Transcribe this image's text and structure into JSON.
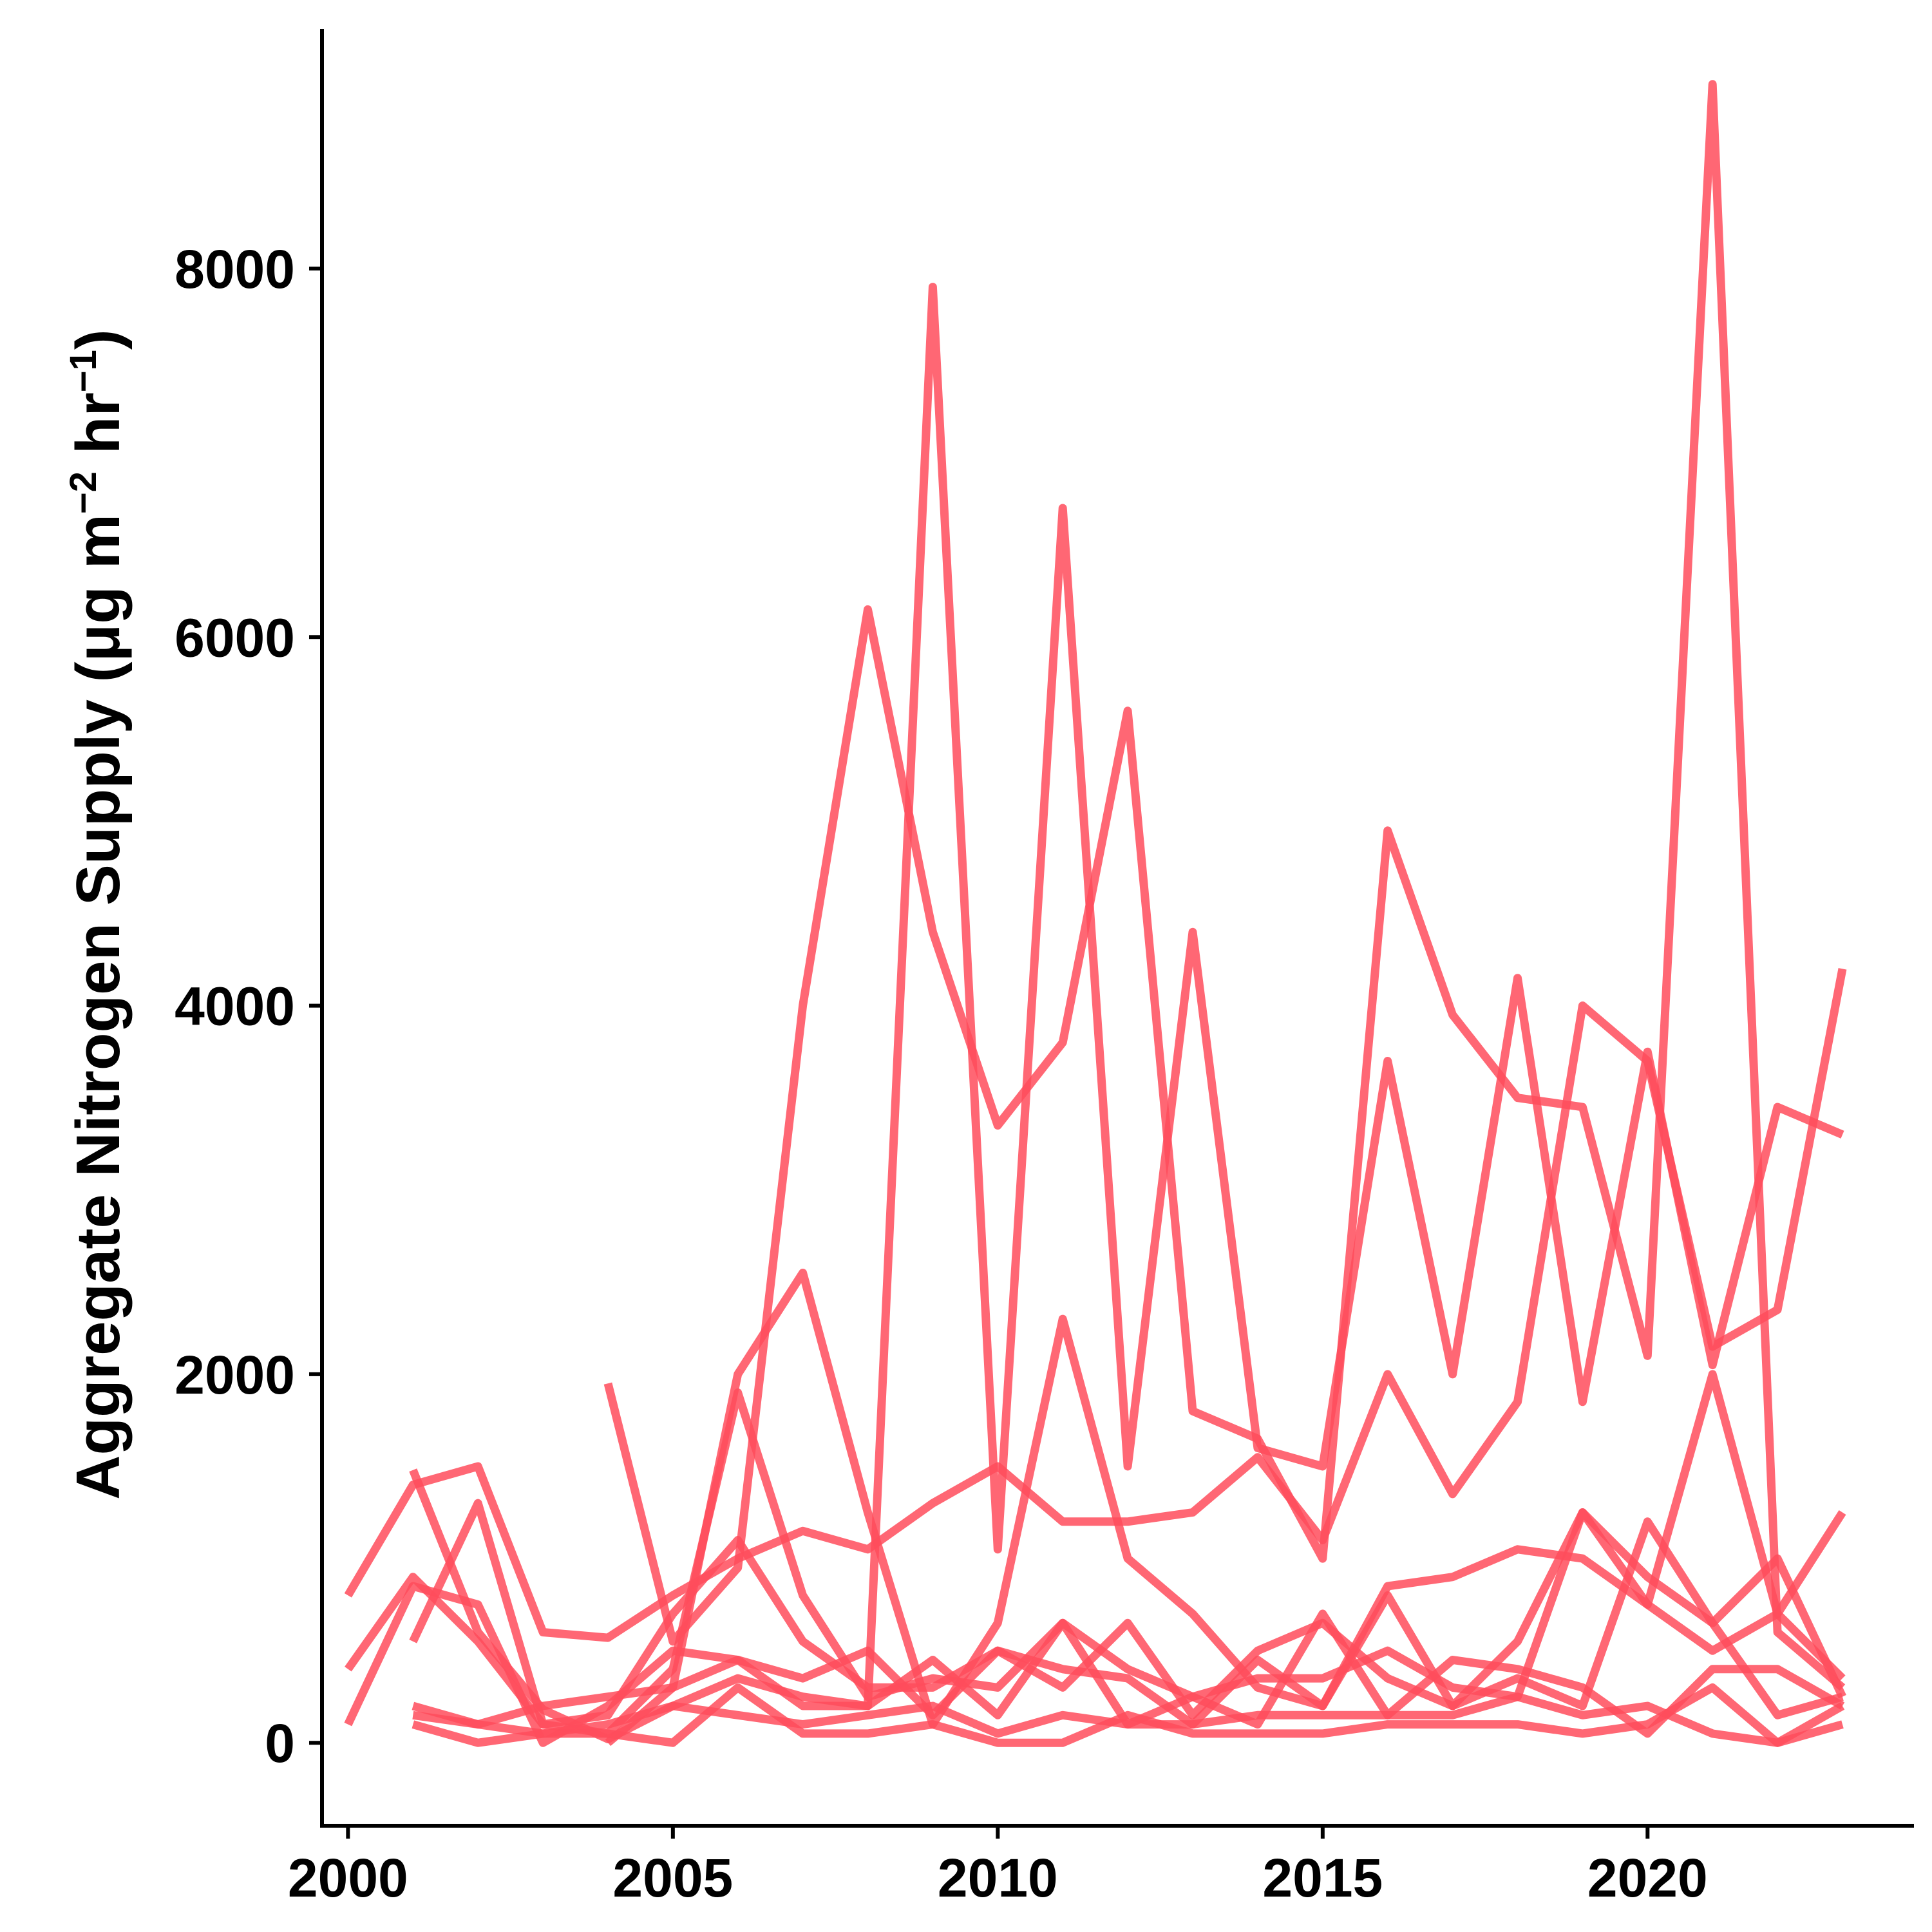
{
  "chart_data": {
    "type": "line",
    "title": "",
    "xlabel": "",
    "ylabel": "Aggregate Nitrogen Supply (μg m",
    "ylabel_sup1": "−2",
    "ylabel_mid": " hr",
    "ylabel_sup2": "−1",
    "ylabel_end": ")",
    "xlim": [
      1999.6,
      2024.1
    ],
    "ylim": [
      -450,
      9300
    ],
    "x_ticks": [
      2000,
      2005,
      2010,
      2015,
      2020
    ],
    "y_ticks": [
      0,
      2000,
      4000,
      6000,
      8000
    ],
    "grid": false,
    "legend": "none",
    "line_color": "#ff4c5c",
    "line_opacity": 0.85,
    "series": [
      {
        "x": [
          2001,
          2002,
          2003,
          2004,
          2005,
          2006,
          2007,
          2008,
          2009,
          2010,
          2011,
          2012,
          2013,
          2014,
          2015,
          2016,
          2017,
          2018,
          2019,
          2020,
          2021,
          2022,
          2023
        ],
        "values": [
          1480,
          600,
          180,
          20,
          200,
          350,
          250,
          200,
          7900,
          1050,
          6700,
          1500,
          4400,
          1600,
          1500,
          3700,
          2000,
          4150,
          1850,
          3750,
          2050,
          3450,
          3300
        ]
      },
      {
        "x": [
          2004,
          2005,
          2006,
          2007,
          2008,
          2009,
          2010,
          2011,
          2012,
          2013,
          2014,
          2015,
          2016,
          2017,
          2018,
          2019,
          2020,
          2021,
          2022,
          2023
        ],
        "values": [
          1950,
          550,
          950,
          4000,
          6150,
          4400,
          3350,
          3800,
          5600,
          1800,
          1650,
          1000,
          4950,
          3950,
          3500,
          3450,
          2100,
          9000,
          600,
          300
        ]
      },
      {
        "x": [
          2000,
          2001,
          2002,
          2003,
          2004,
          2005,
          2006,
          2007,
          2008,
          2009,
          2010,
          2011,
          2012,
          2013,
          2014,
          2015,
          2016,
          2017,
          2018,
          2019,
          2020,
          2021,
          2022,
          2023
        ],
        "values": [
          800,
          1400,
          1500,
          600,
          570,
          800,
          1000,
          1150,
          1050,
          1300,
          1500,
          1200,
          1200,
          1250,
          1550,
          1100,
          2000,
          1350,
          1850,
          4000,
          3700,
          2150,
          2350,
          4200
        ]
      },
      {
        "x": [
          2004,
          2005,
          2006,
          2007,
          2008,
          2009,
          2010,
          2011,
          2012,
          2013,
          2014,
          2015,
          2016,
          2017,
          2018,
          2019,
          2020,
          2021,
          2022,
          2023
        ],
        "values": [
          0,
          300,
          2000,
          2550,
          1250,
          100,
          650,
          2300,
          1000,
          700,
          300,
          200,
          850,
          900,
          1050,
          1000,
          750,
          2000,
          700,
          350
        ]
      },
      {
        "x": [
          2000,
          2001,
          2002,
          2003,
          2004,
          2005,
          2006,
          2007,
          2008,
          2009,
          2010,
          2011,
          2012,
          2013,
          2014,
          2015,
          2016,
          2017,
          2018,
          2019,
          2020,
          2021,
          2022,
          2023
        ],
        "values": [
          400,
          900,
          550,
          100,
          50,
          400,
          1900,
          800,
          250,
          350,
          300,
          650,
          400,
          250,
          350,
          350,
          500,
          300,
          250,
          1250,
          750,
          500,
          700,
          1250
        ]
      },
      {
        "x": [
          2001,
          2002,
          2003,
          2004,
          2005,
          2006,
          2007,
          2008,
          2009,
          2010,
          2011,
          2012,
          2013,
          2014,
          2015,
          2016,
          2017,
          2018,
          2019,
          2020,
          2021,
          2022,
          2023
        ],
        "values": [
          550,
          1300,
          100,
          150,
          700,
          1100,
          550,
          300,
          300,
          500,
          400,
          350,
          100,
          450,
          200,
          800,
          200,
          550,
          1250,
          900,
          650,
          1000,
          250
        ]
      },
      {
        "x": [
          2000,
          2001,
          2002,
          2003,
          2004,
          2005,
          2006,
          2007,
          2008,
          2009,
          2010,
          2011,
          2012,
          2013,
          2014,
          2015,
          2016,
          2017,
          2018,
          2019,
          2020,
          2021,
          2022,
          2023
        ],
        "values": [
          100,
          850,
          750,
          0,
          200,
          500,
          450,
          350,
          500,
          150,
          500,
          300,
          650,
          150,
          500,
          650,
          350,
          200,
          350,
          200,
          1200,
          650,
          150,
          250
        ]
      },
      {
        "x": [
          2001,
          2002,
          2003,
          2004,
          2005,
          2006,
          2007,
          2008,
          2009,
          2010,
          2011,
          2012,
          2013,
          2014,
          2015,
          2016,
          2017,
          2018,
          2019,
          2020,
          2021,
          2022,
          2023
        ],
        "values": [
          200,
          100,
          200,
          250,
          300,
          450,
          200,
          200,
          450,
          150,
          650,
          100,
          250,
          100,
          700,
          150,
          450,
          400,
          300,
          50,
          400,
          400,
          200
        ]
      },
      {
        "x": [
          2001,
          2002,
          2003,
          2004,
          2005,
          2006,
          2007,
          2008,
          2009,
          2010,
          2011,
          2012,
          2013,
          2014,
          2015,
          2016,
          2017,
          2018,
          2019,
          2020,
          2021,
          2022,
          2023
        ],
        "values": [
          150,
          100,
          50,
          100,
          200,
          150,
          100,
          150,
          200,
          50,
          150,
          100,
          100,
          150,
          150,
          150,
          150,
          250,
          150,
          200,
          50,
          0,
          200
        ]
      },
      {
        "x": [
          2001,
          2002,
          2003,
          2004,
          2005,
          2006,
          2007,
          2008,
          2009,
          2010,
          2011,
          2012,
          2013,
          2014,
          2015,
          2016,
          2017,
          2018,
          2019,
          2020,
          2021,
          2022,
          2023
        ],
        "values": [
          100,
          0,
          50,
          50,
          0,
          300,
          50,
          50,
          100,
          0,
          0,
          150,
          50,
          50,
          50,
          100,
          100,
          100,
          50,
          100,
          300,
          0,
          100
        ]
      }
    ]
  }
}
